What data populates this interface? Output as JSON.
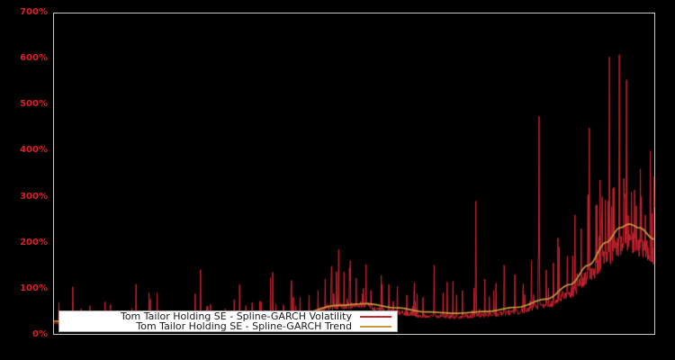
{
  "window": {
    "background": "#000000"
  },
  "axis": {
    "yticks": [
      "0%",
      "100%",
      "200%",
      "300%",
      "400%",
      "500%",
      "600%",
      "700%"
    ],
    "tick_color": "#da2026",
    "border_color": "#c9c9c9",
    "x_labels_visible": false
  },
  "legend": {
    "entries": [
      {
        "label": "Tom Tailor Holding SE - Spline-GARCH Volatility",
        "color": "#cd2330"
      },
      {
        "label": "Tom Tailor Holding SE - Spline-GARCH Trend",
        "color": "#c79a3e"
      }
    ]
  },
  "chart_data": {
    "type": "line",
    "title": "",
    "xlabel": "",
    "ylabel": "",
    "ylim": [
      0,
      700
    ],
    "yticks_pct": [
      0,
      100,
      200,
      300,
      400,
      500,
      600,
      700
    ],
    "grid": false,
    "background": "#000000",
    "legend_position": "lower-left",
    "series": [
      {
        "name": "Tom Tailor Holding SE - Spline-GARCH Volatility",
        "color": "#cd2330",
        "style": "spiky-line"
      },
      {
        "name": "Tom Tailor Holding SE - Spline-GARCH Trend",
        "color": "#c79a3e",
        "style": "smooth-line"
      }
    ],
    "trend_points_pct": [
      [
        0.0,
        28
      ],
      [
        0.06,
        26
      ],
      [
        0.14,
        24
      ],
      [
        0.22,
        24
      ],
      [
        0.3,
        27
      ],
      [
        0.36,
        33
      ],
      [
        0.42,
        48
      ],
      [
        0.47,
        62
      ],
      [
        0.52,
        66
      ],
      [
        0.57,
        57
      ],
      [
        0.62,
        48
      ],
      [
        0.67,
        45
      ],
      [
        0.72,
        49
      ],
      [
        0.77,
        58
      ],
      [
        0.82,
        76
      ],
      [
        0.86,
        108
      ],
      [
        0.89,
        150
      ],
      [
        0.92,
        200
      ],
      [
        0.943,
        232
      ],
      [
        0.958,
        240
      ],
      [
        0.975,
        232
      ],
      [
        1.0,
        207
      ]
    ],
    "spikes_pct": [
      [
        0.031,
        103
      ],
      [
        0.045,
        55
      ],
      [
        0.06,
        62
      ],
      [
        0.085,
        70
      ],
      [
        0.1,
        48
      ],
      [
        0.13,
        56
      ],
      [
        0.155,
        50
      ],
      [
        0.175,
        52
      ],
      [
        0.2,
        45
      ],
      [
        0.235,
        88
      ],
      [
        0.255,
        60
      ],
      [
        0.285,
        55
      ],
      [
        0.3,
        75
      ],
      [
        0.32,
        62
      ],
      [
        0.345,
        70
      ],
      [
        0.37,
        65
      ],
      [
        0.395,
        112
      ],
      [
        0.41,
        80
      ],
      [
        0.425,
        85
      ],
      [
        0.44,
        95
      ],
      [
        0.452,
        120
      ],
      [
        0.462,
        148
      ],
      [
        0.474,
        185
      ],
      [
        0.483,
        135
      ],
      [
        0.494,
        160
      ],
      [
        0.503,
        122
      ],
      [
        0.515,
        100
      ],
      [
        0.528,
        95
      ],
      [
        0.545,
        128
      ],
      [
        0.558,
        108
      ],
      [
        0.572,
        104
      ],
      [
        0.588,
        85
      ],
      [
        0.6,
        92
      ],
      [
        0.615,
        80
      ],
      [
        0.633,
        150
      ],
      [
        0.648,
        90
      ],
      [
        0.665,
        115
      ],
      [
        0.68,
        95
      ],
      [
        0.703,
        290
      ],
      [
        0.718,
        120
      ],
      [
        0.733,
        95
      ],
      [
        0.75,
        150
      ],
      [
        0.768,
        130
      ],
      [
        0.782,
        110
      ],
      [
        0.795,
        160
      ],
      [
        0.808,
        475
      ],
      [
        0.82,
        140
      ],
      [
        0.832,
        155
      ],
      [
        0.842,
        190
      ],
      [
        0.855,
        170
      ],
      [
        0.868,
        260
      ],
      [
        0.878,
        230
      ],
      [
        0.892,
        450
      ],
      [
        0.903,
        280
      ],
      [
        0.913,
        300
      ],
      [
        0.925,
        605
      ],
      [
        0.933,
        320
      ],
      [
        0.942,
        610
      ],
      [
        0.949,
        340
      ],
      [
        0.954,
        555
      ],
      [
        0.962,
        310
      ],
      [
        0.97,
        280
      ],
      [
        0.978,
        300
      ],
      [
        0.985,
        260
      ],
      [
        0.993,
        400
      ],
      [
        0.996,
        260
      ]
    ],
    "noise": {
      "seed": 1337,
      "baseline_lo": 0.72,
      "baseline_hi": 0.94,
      "small_spike_prob": 0.05,
      "clusters": [
        {
          "from": 0.44,
          "to": 0.53,
          "gain": 1.18,
          "prob_mult": 2.4
        },
        {
          "from": 0.86,
          "to": 1.0,
          "gain": 1.0,
          "prob_mult": 2.0
        }
      ]
    }
  }
}
